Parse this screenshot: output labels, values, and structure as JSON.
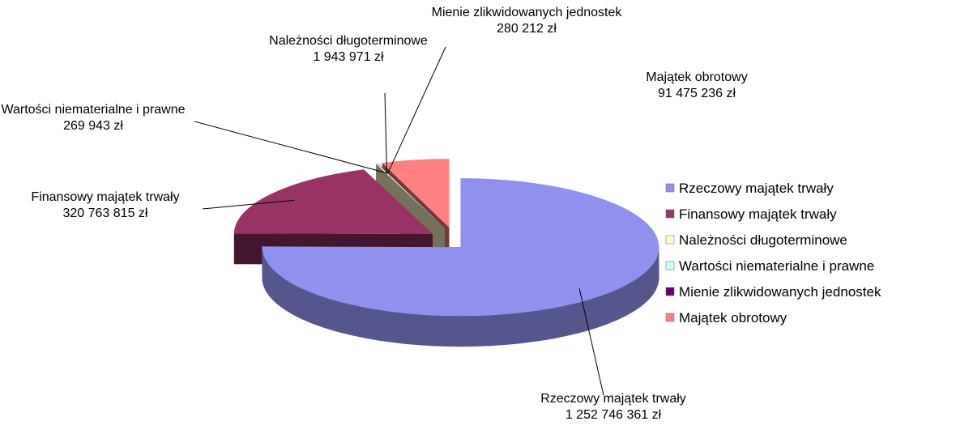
{
  "chart_data": {
    "type": "pie",
    "categories": [
      "Rzeczowy majątek trwały",
      "Finansowy majątek trwały",
      "Należności długoterminowe",
      "Wartości niematerialne i prawne",
      "Mienie zlikwidowanych jednostek",
      "Majątek obrotowy"
    ],
    "values": [
      1252746361,
      320763815,
      1943971,
      269943,
      280212,
      91475236
    ],
    "value_labels": [
      "1 252 746 361 zł",
      "320 763 815 zł",
      "1 943 971 zł",
      "269 943 zł",
      "280 212 zł",
      "91 475 236 zł"
    ],
    "colors": [
      "#9090ee",
      "#993366",
      "#ffffcc",
      "#ccffff",
      "#660066",
      "#ff8080"
    ],
    "legend": "right"
  }
}
